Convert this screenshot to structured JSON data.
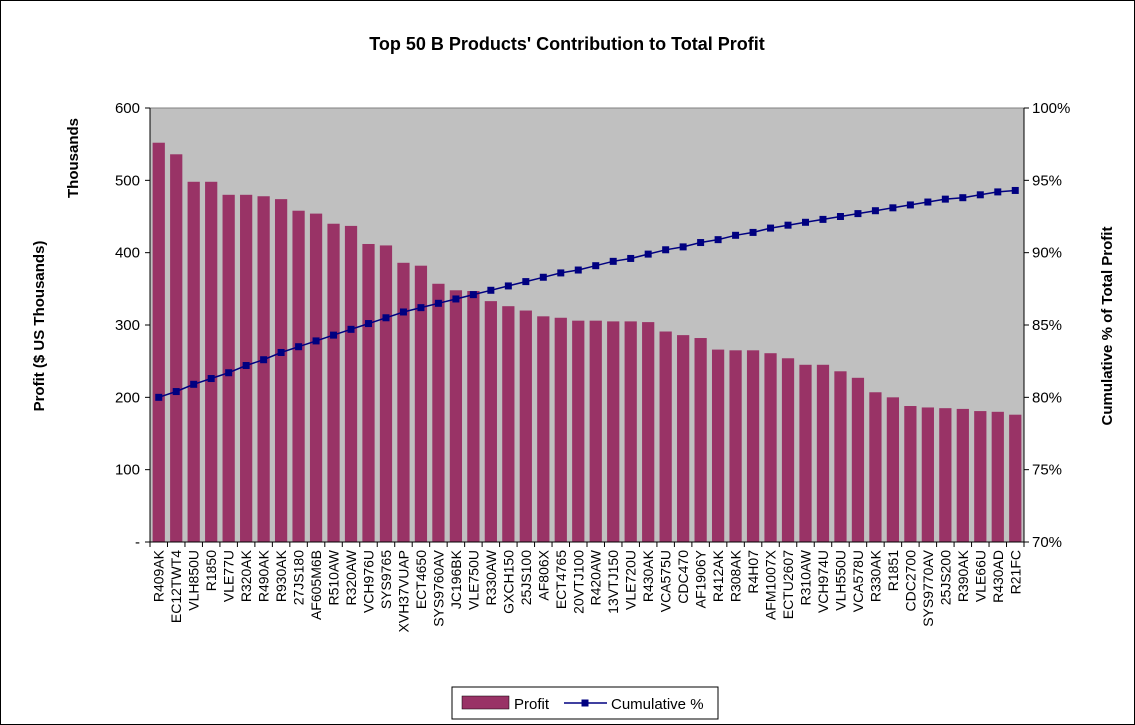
{
  "chart_data": {
    "type": "bar",
    "title": "Top 50 B Products' Contribution to Total Profit",
    "ylabel": "Profit ($ US Thousands)",
    "y_unit_label": "Thousands",
    "y2label": "Cumulative % of Total Profit",
    "ylim": [
      0,
      600
    ],
    "y2lim": [
      70,
      100
    ],
    "y_ticks": [
      0,
      100,
      200,
      300,
      400,
      500,
      600
    ],
    "y_tick_labels": [
      "-",
      "100",
      "200",
      "300",
      "400",
      "500",
      "600"
    ],
    "y2_ticks": [
      70,
      75,
      80,
      85,
      90,
      95,
      100
    ],
    "y2_tick_labels": [
      "70%",
      "75%",
      "80%",
      "85%",
      "90%",
      "95%",
      "100%"
    ],
    "grid": false,
    "legend_position": "bottom",
    "categories": [
      "R409AK",
      "EC12TWT4",
      "VLH850U",
      "R1850",
      "VLE77U",
      "R320AK",
      "R490AK",
      "R930AK",
      "27JS180",
      "AF605M6B",
      "R510AW",
      "R320AW",
      "VCH976U",
      "SYS9765",
      "XVH37VUAP",
      "ECT4650",
      "SYS9760AV",
      "JC196BK",
      "VLE750U",
      "R330AW",
      "GXCH150",
      "25JS100",
      "AF806X",
      "ECT4765",
      "20VTJ100",
      "R420AW",
      "13VTJ150",
      "VLE720U",
      "R430AK",
      "VCA575U",
      "CDC470",
      "AF1906Y",
      "R412AK",
      "R308AK",
      "R4H07",
      "AFM1007X",
      "ECTU2607",
      "R310AW",
      "VCH974U",
      "VLH550U",
      "VCA578U",
      "R330AK",
      "R1851",
      "CDC2700",
      "SYS9770AV",
      "25JS200",
      "R390AK",
      "VLE66U",
      "R430AD",
      "R21FC"
    ],
    "series": [
      {
        "name": "Profit",
        "type": "bar",
        "axis": "left",
        "color": "#993366",
        "values": [
          552,
          536,
          498,
          498,
          480,
          480,
          478,
          474,
          458,
          454,
          440,
          437,
          412,
          410,
          386,
          382,
          357,
          348,
          347,
          333,
          326,
          320,
          312,
          310,
          306,
          306,
          305,
          305,
          304,
          291,
          286,
          282,
          266,
          265,
          265,
          261,
          254,
          245,
          245,
          236,
          227,
          207,
          200,
          188,
          186,
          185,
          184,
          181,
          180,
          176
        ]
      },
      {
        "name": "Cumulative %",
        "type": "line",
        "axis": "right",
        "color": "#000080",
        "values": [
          80.0,
          80.4,
          80.9,
          81.3,
          81.7,
          82.2,
          82.6,
          83.1,
          83.5,
          83.9,
          84.3,
          84.7,
          85.1,
          85.5,
          85.9,
          86.2,
          86.5,
          86.8,
          87.1,
          87.4,
          87.7,
          88.0,
          88.3,
          88.6,
          88.8,
          89.1,
          89.4,
          89.6,
          89.9,
          90.2,
          90.4,
          90.7,
          90.9,
          91.2,
          91.4,
          91.7,
          91.9,
          92.1,
          92.3,
          92.5,
          92.7,
          92.9,
          93.1,
          93.3,
          93.5,
          93.7,
          93.8,
          94.0,
          94.2,
          94.3
        ]
      }
    ]
  }
}
